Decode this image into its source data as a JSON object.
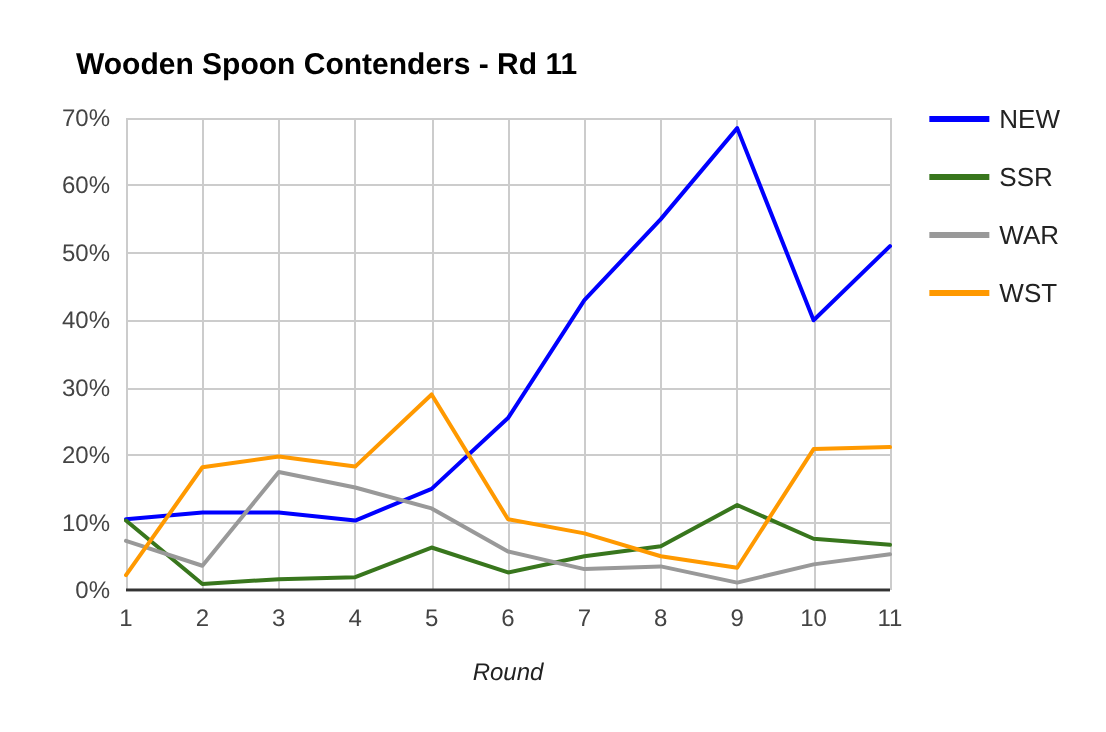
{
  "chart_data": {
    "type": "line",
    "title": "Wooden Spoon Contenders - Rd 11",
    "xlabel": "Round",
    "x": [
      1,
      2,
      3,
      4,
      5,
      6,
      7,
      8,
      9,
      10,
      11
    ],
    "series": [
      {
        "name": "NEW",
        "color": "#0000ff",
        "values": [
          10.5,
          11.5,
          11.5,
          10.3,
          15,
          25.5,
          43,
          55,
          68.5,
          40,
          51
        ]
      },
      {
        "name": "SSR",
        "color": "#38761d",
        "values": [
          10.3,
          0.9,
          1.6,
          1.9,
          6.3,
          2.6,
          5,
          6.5,
          12.6,
          7.6,
          6.7
        ]
      },
      {
        "name": "WAR",
        "color": "#999999",
        "values": [
          7.3,
          3.6,
          17.5,
          15.2,
          12.1,
          5.7,
          3.1,
          3.5,
          1.1,
          3.8,
          5.3
        ]
      },
      {
        "name": "WST",
        "color": "#ff9900",
        "values": [
          2.2,
          18.2,
          19.8,
          18.3,
          29,
          10.5,
          8.4,
          5,
          3.3,
          20.9,
          21.2
        ]
      }
    ],
    "xlim": [
      1,
      11
    ],
    "xticks": [
      1,
      2,
      3,
      4,
      5,
      6,
      7,
      8,
      9,
      10,
      11
    ],
    "ylim": [
      0,
      70
    ],
    "yticks": [
      {
        "value": 0,
        "label": "0%"
      },
      {
        "value": 10,
        "label": "10%"
      },
      {
        "value": 20,
        "label": "20%"
      },
      {
        "value": 30,
        "label": "30%"
      },
      {
        "value": 40,
        "label": "40%"
      },
      {
        "value": 50,
        "label": "50%"
      },
      {
        "value": 60,
        "label": "60%"
      },
      {
        "value": 70,
        "label": "70%"
      }
    ],
    "grid": true,
    "legend": "right",
    "marker": "none",
    "line_style": "solid"
  }
}
